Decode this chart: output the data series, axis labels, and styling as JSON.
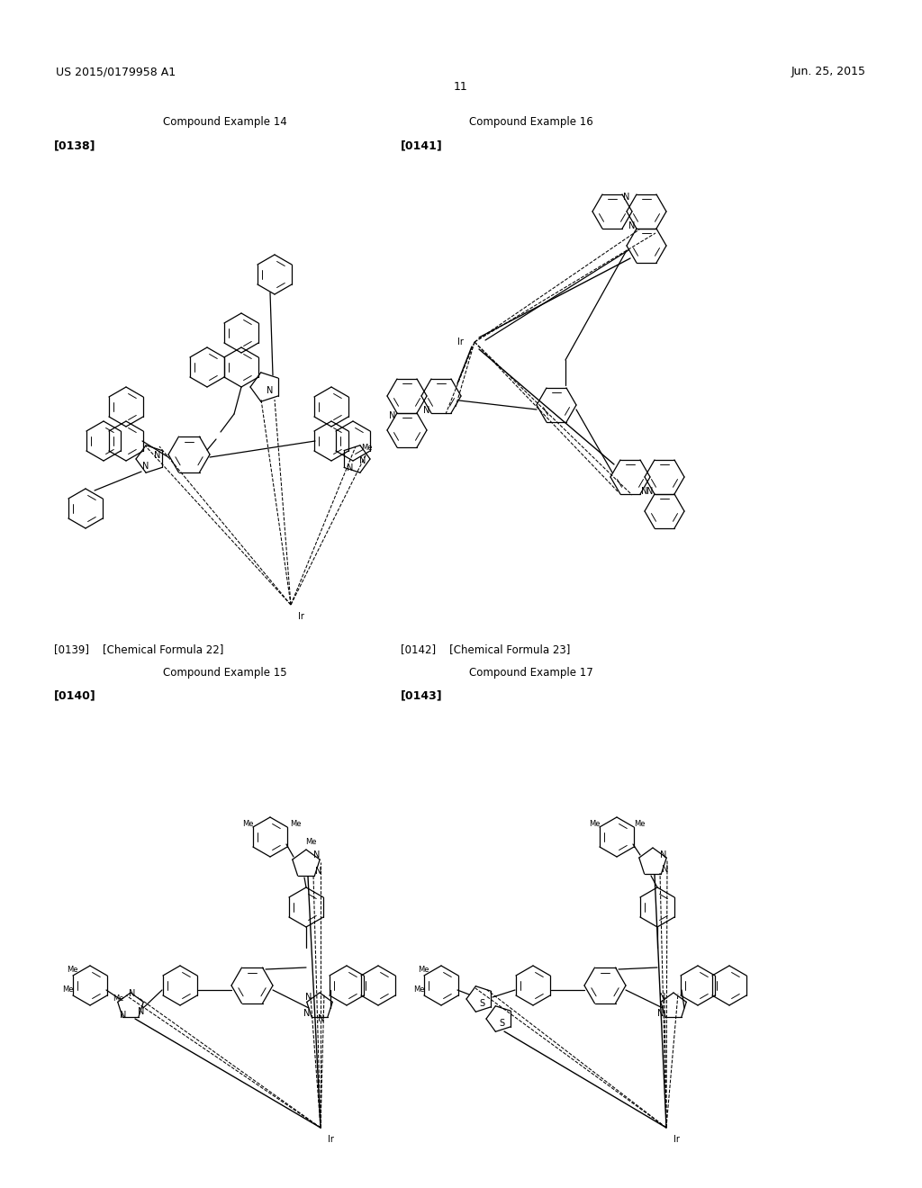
{
  "background_color": "#ffffff",
  "header_left": "US 2015/0179958 A1",
  "header_right": "Jun. 25, 2015",
  "page_number": "11",
  "text_items": [
    [
      250,
      135,
      "Compound Example 14",
      "center",
      8.5,
      "normal"
    ],
    [
      60,
      162,
      "[0138]",
      "left",
      9,
      "bold"
    ],
    [
      590,
      135,
      "Compound Example 16",
      "center",
      8.5,
      "normal"
    ],
    [
      445,
      162,
      "[0141]",
      "left",
      9,
      "bold"
    ],
    [
      60,
      722,
      "[0139]    [Chemical Formula 22]",
      "left",
      8.5,
      "normal"
    ],
    [
      445,
      722,
      "[0142]    [Chemical Formula 23]",
      "left",
      8.5,
      "normal"
    ],
    [
      250,
      748,
      "Compound Example 15",
      "center",
      8.5,
      "normal"
    ],
    [
      60,
      773,
      "[0140]",
      "left",
      9,
      "bold"
    ],
    [
      590,
      748,
      "Compound Example 17",
      "center",
      8.5,
      "normal"
    ],
    [
      445,
      773,
      "[0143]",
      "left",
      9,
      "bold"
    ]
  ]
}
